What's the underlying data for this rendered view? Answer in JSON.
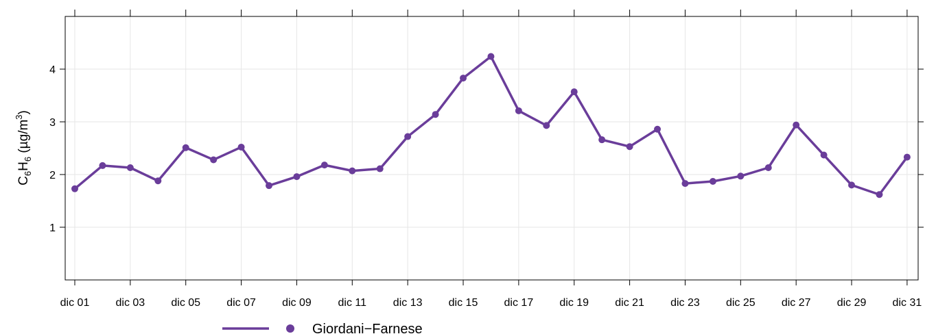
{
  "chart_data": {
    "type": "line",
    "ylabel": {
      "base": "C",
      "sub1": "6",
      "mid": "H",
      "sub2": "6",
      "unit_open": " (µg/m",
      "sup": "3",
      "unit_close": ")"
    },
    "ylim": [
      0,
      5
    ],
    "yticks": [
      1,
      2,
      3,
      4
    ],
    "grid": true,
    "legend_position": "bottom",
    "x": [
      "dic 01",
      "dic 02",
      "dic 03",
      "dic 04",
      "dic 05",
      "dic 06",
      "dic 07",
      "dic 08",
      "dic 09",
      "dic 10",
      "dic 11",
      "dic 12",
      "dic 13",
      "dic 14",
      "dic 15",
      "dic 16",
      "dic 17",
      "dic 18",
      "dic 19",
      "dic 20",
      "dic 21",
      "dic 22",
      "dic 23",
      "dic 24",
      "dic 25",
      "dic 26",
      "dic 27",
      "dic 28",
      "dic 29",
      "dic 30",
      "dic 31"
    ],
    "xtick_labels": [
      "dic 01",
      "dic 03",
      "dic 05",
      "dic 07",
      "dic 09",
      "dic 11",
      "dic 13",
      "dic 15",
      "dic 17",
      "dic 19",
      "dic 21",
      "dic 23",
      "dic 25",
      "dic 27",
      "dic 29",
      "dic 31"
    ],
    "series": [
      {
        "name": "Giordani−Farnese",
        "color": "#6a3d9a",
        "values": [
          1.73,
          2.17,
          2.13,
          1.88,
          2.51,
          2.28,
          2.52,
          1.79,
          1.96,
          2.18,
          2.07,
          2.11,
          2.72,
          3.14,
          3.83,
          4.24,
          3.21,
          2.93,
          3.57,
          2.66,
          2.53,
          2.86,
          1.83,
          1.87,
          1.97,
          2.13,
          2.94,
          2.37,
          1.8,
          1.62,
          2.33
        ]
      }
    ]
  }
}
